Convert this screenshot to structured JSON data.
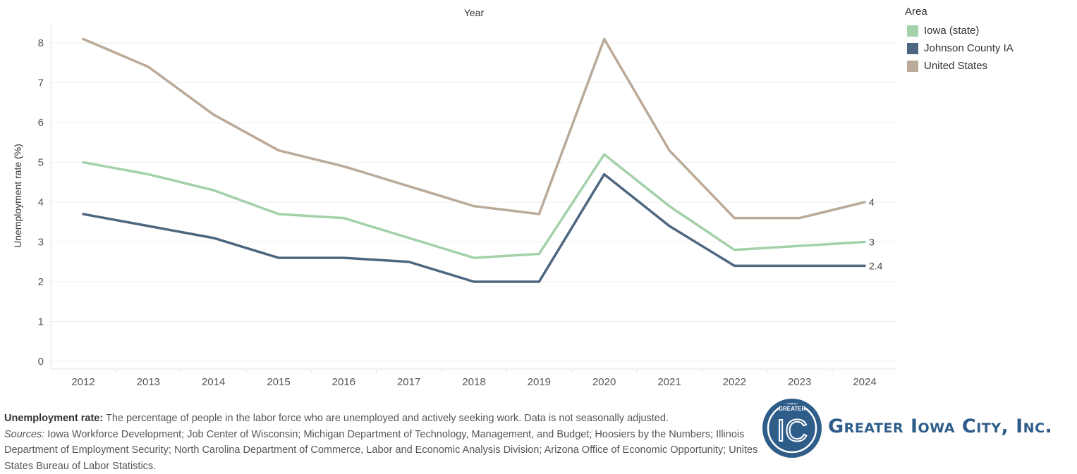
{
  "chart_data": {
    "type": "line",
    "title": "Year",
    "xlabel": "Year",
    "ylabel": "Unemployment rate (%)",
    "ylim": [
      0,
      8
    ],
    "yticks": [
      0,
      1,
      2,
      3,
      4,
      5,
      6,
      7,
      8
    ],
    "grid": true,
    "legend_position": "top-right",
    "categories": [
      "2012",
      "2013",
      "2014",
      "2015",
      "2016",
      "2017",
      "2018",
      "2019",
      "2020",
      "2021",
      "2022",
      "2023",
      "2024"
    ],
    "series": [
      {
        "name": "United States",
        "color": "#bbaa99",
        "values": [
          8.1,
          7.4,
          6.2,
          5.3,
          4.9,
          4.4,
          3.9,
          3.7,
          8.1,
          5.3,
          3.6,
          3.6,
          4.0
        ],
        "end_label": "4"
      },
      {
        "name": "Iowa (state)",
        "color": "#a3d1aa",
        "values": [
          5.0,
          4.7,
          4.3,
          3.7,
          3.6,
          3.1,
          2.6,
          2.7,
          5.2,
          3.9,
          2.8,
          2.9,
          3.0
        ],
        "end_label": "3"
      },
      {
        "name": "Johnson County IA",
        "color": "#4e6780",
        "values": [
          3.7,
          3.4,
          3.1,
          2.6,
          2.6,
          2.5,
          2.0,
          2.0,
          4.7,
          3.4,
          2.4,
          2.4,
          2.4
        ],
        "end_label": "2.4"
      }
    ]
  },
  "legend": {
    "title": "Area",
    "items": [
      {
        "label": "Iowa (state)",
        "color": "#a3d1aa"
      },
      {
        "label": "Johnson County IA",
        "color": "#4e6780"
      },
      {
        "label": "United States",
        "color": "#bbaa99"
      }
    ]
  },
  "footnote": {
    "definition_term": "Unemployment rate:",
    "definition_text": " The percentage of people in the labor force who are unemployed and actively seeking work. Data is not seasonally adjusted.",
    "sources_label": "Sources:",
    "sources_text": " Iowa Workforce Development; Job Center of Wisconsin; Michigan Department of Technology, Management, and Budget; Hoosiers by the Numbers; Illinois Department of Employment Security; North Carolina Department of Commerce, Labor and Economic Analysis Division; Arizona Office of Economic Opportunity; Unites States Bureau of Labor Statistics."
  },
  "logo": {
    "badge_top": "GREATER",
    "badge_letters": "IC",
    "name": "Greater Iowa City, Inc."
  }
}
